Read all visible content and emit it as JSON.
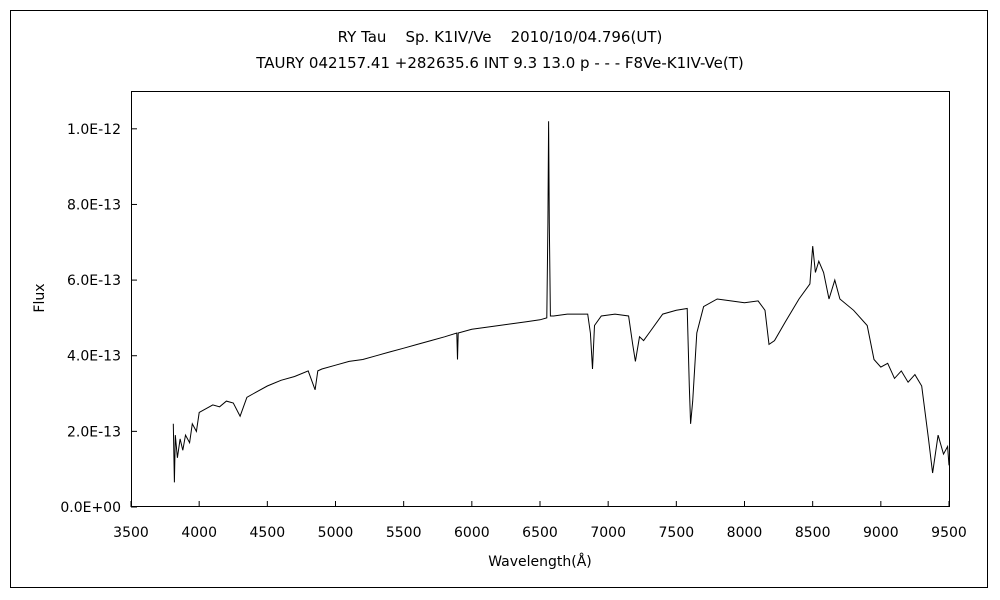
{
  "chart_data": {
    "type": "line",
    "title": "RY Tau    Sp. K1ⅠV/Ve    2010/10/04.796(UT)",
    "subtitle": "TAURY 042157.41 +282635.6 INT 9.3 13.0 p - - - F8Ve-K1ⅠV-Ve(T)",
    "xlabel": "Wavelength(Å)",
    "ylabel": "Flux",
    "xlim": [
      3500,
      9500
    ],
    "ylim": [
      0,
      1.1e-12
    ],
    "xticks": [
      3500,
      4000,
      4500,
      5000,
      5500,
      6000,
      6500,
      7000,
      7500,
      8000,
      8500,
      9000,
      9500
    ],
    "xtick_labels": [
      "3500",
      "4000",
      "4500",
      "5000",
      "5500",
      "6000",
      "6500",
      "7000",
      "7500",
      "8000",
      "8500",
      "9000",
      "9500"
    ],
    "yticks": [
      0,
      2e-13,
      4e-13,
      6e-13,
      8e-13,
      1e-12
    ],
    "ytick_labels": [
      "0.0E+00",
      "2.0E-13",
      "4.0E-13",
      "6.0E-13",
      "8.0E-13",
      "1.0E-12"
    ],
    "grid": false,
    "legend": "none",
    "series": [
      {
        "color": "#000000",
        "points": [
          [
            3810,
            2.2e-13
          ],
          [
            3818,
            6.5e-14
          ],
          [
            3825,
            1.9e-13
          ],
          [
            3840,
            1.3e-13
          ],
          [
            3860,
            1.8e-13
          ],
          [
            3880,
            1.5e-13
          ],
          [
            3900,
            1.9e-13
          ],
          [
            3930,
            1.7e-13
          ],
          [
            3950,
            2.2e-13
          ],
          [
            3980,
            2e-13
          ],
          [
            4000,
            2.5e-13
          ],
          [
            4050,
            2.6e-13
          ],
          [
            4100,
            2.7e-13
          ],
          [
            4150,
            2.65e-13
          ],
          [
            4200,
            2.8e-13
          ],
          [
            4250,
            2.75e-13
          ],
          [
            4300,
            2.4e-13
          ],
          [
            4350,
            2.9e-13
          ],
          [
            4400,
            3e-13
          ],
          [
            4500,
            3.2e-13
          ],
          [
            4600,
            3.35e-13
          ],
          [
            4700,
            3.45e-13
          ],
          [
            4800,
            3.6e-13
          ],
          [
            4850,
            3.1e-13
          ],
          [
            4870,
            3.6e-13
          ],
          [
            4900,
            3.65e-13
          ],
          [
            5000,
            3.75e-13
          ],
          [
            5100,
            3.85e-13
          ],
          [
            5200,
            3.9e-13
          ],
          [
            5300,
            4e-13
          ],
          [
            5400,
            4.1e-13
          ],
          [
            5500,
            4.2e-13
          ],
          [
            5600,
            4.3e-13
          ],
          [
            5700,
            4.4e-13
          ],
          [
            5800,
            4.5e-13
          ],
          [
            5890,
            4.6e-13
          ],
          [
            5895,
            3.9e-13
          ],
          [
            5900,
            4.6e-13
          ],
          [
            6000,
            4.7e-13
          ],
          [
            6100,
            4.75e-13
          ],
          [
            6200,
            4.8e-13
          ],
          [
            6300,
            4.85e-13
          ],
          [
            6400,
            4.9e-13
          ],
          [
            6500,
            4.95e-13
          ],
          [
            6550,
            5e-13
          ],
          [
            6558,
            7.5e-13
          ],
          [
            6563,
            1.02e-12
          ],
          [
            6568,
            7.5e-13
          ],
          [
            6576,
            5.05e-13
          ],
          [
            6600,
            5.05e-13
          ],
          [
            6700,
            5.1e-13
          ],
          [
            6850,
            5.1e-13
          ],
          [
            6870,
            4.6e-13
          ],
          [
            6885,
            3.65e-13
          ],
          [
            6900,
            4.8e-13
          ],
          [
            6950,
            5.05e-13
          ],
          [
            7050,
            5.1e-13
          ],
          [
            7150,
            5.05e-13
          ],
          [
            7180,
            4.3e-13
          ],
          [
            7200,
            3.85e-13
          ],
          [
            7230,
            4.5e-13
          ],
          [
            7260,
            4.4e-13
          ],
          [
            7300,
            4.6e-13
          ],
          [
            7400,
            5.1e-13
          ],
          [
            7500,
            5.2e-13
          ],
          [
            7580,
            5.25e-13
          ],
          [
            7595,
            3.2e-13
          ],
          [
            7605,
            2.2e-13
          ],
          [
            7620,
            2.8e-13
          ],
          [
            7650,
            4.6e-13
          ],
          [
            7700,
            5.3e-13
          ],
          [
            7800,
            5.5e-13
          ],
          [
            7900,
            5.45e-13
          ],
          [
            8000,
            5.4e-13
          ],
          [
            8100,
            5.45e-13
          ],
          [
            8150,
            5.2e-13
          ],
          [
            8180,
            4.3e-13
          ],
          [
            8220,
            4.4e-13
          ],
          [
            8300,
            4.9e-13
          ],
          [
            8400,
            5.5e-13
          ],
          [
            8480,
            5.9e-13
          ],
          [
            8500,
            6.9e-13
          ],
          [
            8520,
            6.2e-13
          ],
          [
            8545,
            6.5e-13
          ],
          [
            8580,
            6.2e-13
          ],
          [
            8620,
            5.5e-13
          ],
          [
            8662,
            6e-13
          ],
          [
            8700,
            5.5e-13
          ],
          [
            8800,
            5.2e-13
          ],
          [
            8900,
            4.8e-13
          ],
          [
            8950,
            3.9e-13
          ],
          [
            9000,
            3.7e-13
          ],
          [
            9050,
            3.8e-13
          ],
          [
            9100,
            3.4e-13
          ],
          [
            9150,
            3.6e-13
          ],
          [
            9200,
            3.3e-13
          ],
          [
            9250,
            3.5e-13
          ],
          [
            9300,
            3.2e-13
          ],
          [
            9350,
            1.8e-13
          ],
          [
            9380,
            9e-14
          ],
          [
            9420,
            1.9e-13
          ],
          [
            9460,
            1.4e-13
          ],
          [
            9490,
            1.6e-13
          ],
          [
            9500,
            1.1e-13
          ]
        ]
      }
    ]
  }
}
